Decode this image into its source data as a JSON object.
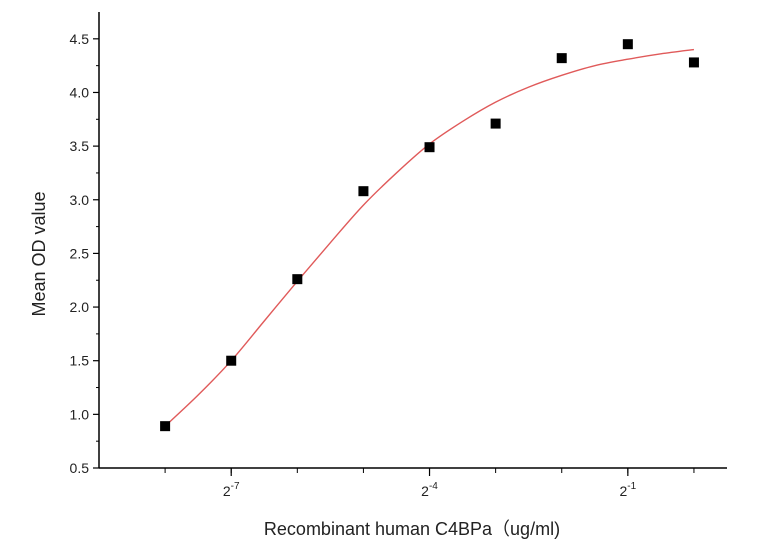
{
  "chart_data": {
    "type": "scatter",
    "title": "",
    "xlabel": "Recombinant human  C4BPa（ug/ml)",
    "ylabel": "Mean OD value",
    "x_scale": "log2",
    "xlim": [
      -9,
      0.5
    ],
    "ylim": [
      0.5,
      4.75
    ],
    "x_ticks": [
      {
        "value": -7,
        "base": "2",
        "exp": "-7"
      },
      {
        "value": -4,
        "base": "2",
        "exp": "-4"
      },
      {
        "value": -1,
        "base": "2",
        "exp": "-1"
      }
    ],
    "y_ticks": [
      "0.5",
      "1.0",
      "1.5",
      "2.0",
      "2.5",
      "3.0",
      "3.5",
      "4.0",
      "4.5"
    ],
    "grid": false,
    "series": [
      {
        "type": "scatter",
        "marker": "square",
        "color": "#000000",
        "x": [
          -8,
          -7,
          -6,
          -5,
          -4,
          -3,
          -2,
          -1,
          0
        ],
        "y": [
          0.89,
          1.5,
          2.26,
          3.08,
          3.49,
          3.71,
          4.32,
          4.45,
          4.28
        ]
      },
      {
        "type": "line",
        "color": "#e05a5a",
        "x": [
          -8,
          -7.5,
          -7,
          -6.5,
          -6,
          -5.5,
          -5,
          -4.5,
          -4,
          -3.5,
          -3,
          -2.5,
          -2,
          -1.5,
          -1,
          -0.5,
          0
        ],
        "y": [
          0.89,
          1.18,
          1.5,
          1.87,
          2.24,
          2.6,
          2.95,
          3.25,
          3.52,
          3.73,
          3.91,
          4.05,
          4.16,
          4.25,
          4.31,
          4.36,
          4.4
        ]
      }
    ]
  }
}
